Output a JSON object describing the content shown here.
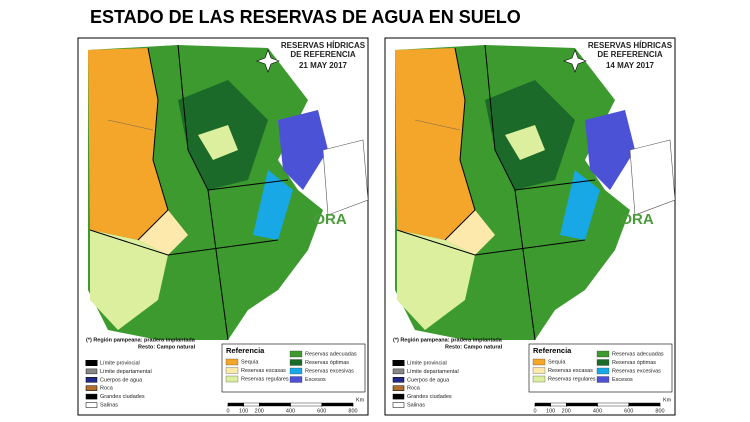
{
  "title": "ESTADO DE LAS RESERVAS DE AGUA EN SUELO",
  "maps": [
    {
      "header": [
        "RESERVAS HÍDRICAS",
        "DE REFERENCIA"
      ],
      "date": "21 MAY 2017",
      "logo": "ORA",
      "note": [
        "(*) Región pampeana: pradera implantada",
        "Resto: Campo natural"
      ],
      "boundaries": [
        {
          "label": "Límite provincial",
          "color": "#000000"
        },
        {
          "label": "Límite departamental",
          "color": "#888888"
        },
        {
          "label": "Cuerpos de agua",
          "color": "#1f2a8c"
        },
        {
          "label": "Roca",
          "color": "#b0702c"
        },
        {
          "label": "Grandes ciudades",
          "color": "#000000"
        },
        {
          "label": "Salinas",
          "color": "#ffffff"
        }
      ],
      "legend": {
        "title": "Referencia",
        "items": [
          {
            "label": "Sequía",
            "color": "#f4a62a"
          },
          {
            "label": "Reservas escasas",
            "color": "#fde9ac"
          },
          {
            "label": "Reservas regulares",
            "color": "#dcef9e"
          },
          {
            "label": "Reservas adecuadas",
            "color": "#3d9a2f"
          },
          {
            "label": "Reservas óptimas",
            "color": "#1c6a2a"
          },
          {
            "label": "Reservas excesivas",
            "color": "#18a8e6"
          },
          {
            "label": "Excesos",
            "color": "#4b52d6"
          }
        ]
      },
      "scale": {
        "ticks": [
          0,
          100,
          200,
          400,
          600,
          800
        ],
        "unit": "Km"
      }
    },
    {
      "header": [
        "RESERVAS HÍDRICAS",
        "DE REFERENCIA"
      ],
      "date": "14 MAY 2017",
      "logo": "ORA",
      "note": [
        "(*) Región pampeana: pradera implantada",
        "Resto: Campo natural"
      ],
      "boundaries": [
        {
          "label": "Límite provincial",
          "color": "#000000"
        },
        {
          "label": "Límite departamental",
          "color": "#888888"
        },
        {
          "label": "Cuerpos de agua",
          "color": "#1f2a8c"
        },
        {
          "label": "Roca",
          "color": "#b0702c"
        },
        {
          "label": "Grandes ciudades",
          "color": "#000000"
        },
        {
          "label": "Salinas",
          "color": "#ffffff"
        }
      ],
      "legend": {
        "title": "Referencia",
        "items": [
          {
            "label": "Sequía",
            "color": "#f4a62a"
          },
          {
            "label": "Reservas escasas",
            "color": "#fde9ac"
          },
          {
            "label": "Reservas regulares",
            "color": "#dcef9e"
          },
          {
            "label": "Reservas adecuadas",
            "color": "#3d9a2f"
          },
          {
            "label": "Reservas óptimas",
            "color": "#1c6a2a"
          },
          {
            "label": "Reservas excesivas",
            "color": "#18a8e6"
          },
          {
            "label": "Excesos",
            "color": "#4b52d6"
          }
        ]
      },
      "scale": {
        "ticks": [
          0,
          100,
          200,
          400,
          600,
          800
        ],
        "unit": "Km"
      }
    }
  ]
}
